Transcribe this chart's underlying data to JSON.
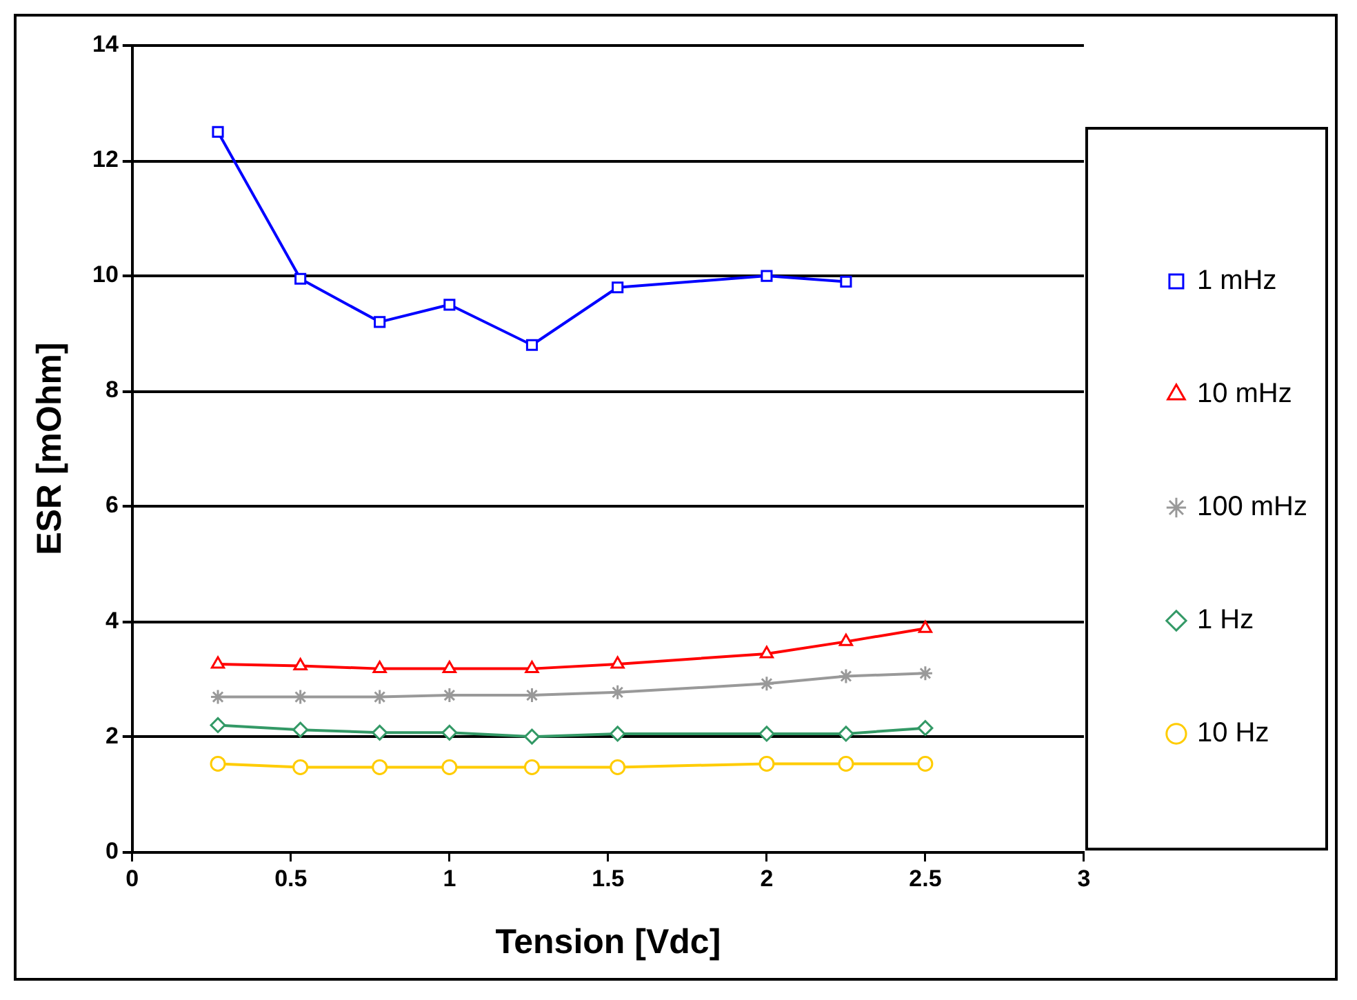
{
  "chart_data": {
    "type": "line",
    "xlabel": "Tension [Vdc]",
    "ylabel": "ESR [mOhm]",
    "xlim": [
      0,
      3
    ],
    "xticks": [
      0,
      0.5,
      1,
      1.5,
      2,
      2.5,
      3
    ],
    "ylim": [
      0,
      14
    ],
    "yticks": [
      0,
      2,
      4,
      6,
      8,
      10,
      12,
      14
    ],
    "grid": "y",
    "legend": "right",
    "series": [
      {
        "name": "1 mHz",
        "color": "#0000ff",
        "marker": "square",
        "x": [
          0.27,
          0.53,
          0.78,
          1.0,
          1.26,
          1.53,
          2.0,
          2.25
        ],
        "values": [
          12.5,
          9.95,
          9.2,
          9.5,
          8.8,
          9.8,
          10.0,
          9.9
        ]
      },
      {
        "name": "10 mHz",
        "color": "#ff0000",
        "marker": "triangle",
        "x": [
          0.27,
          0.53,
          0.78,
          1.0,
          1.26,
          1.53,
          2.0,
          2.25,
          2.5
        ],
        "values": [
          3.26,
          3.23,
          3.18,
          3.18,
          3.18,
          3.26,
          3.44,
          3.65,
          3.88
        ]
      },
      {
        "name": "100 mHz",
        "color": "#999999",
        "marker": "cross",
        "x": [
          0.27,
          0.53,
          0.78,
          1.0,
          1.26,
          1.53,
          2.0,
          2.25,
          2.5
        ],
        "values": [
          2.69,
          2.69,
          2.69,
          2.72,
          2.72,
          2.77,
          2.92,
          3.05,
          3.1
        ]
      },
      {
        "name": "1 Hz",
        "color": "#339966",
        "marker": "diamond",
        "x": [
          0.27,
          0.53,
          0.78,
          1.0,
          1.26,
          1.53,
          2.0,
          2.25,
          2.5
        ],
        "values": [
          2.2,
          2.12,
          2.07,
          2.07,
          2.0,
          2.05,
          2.05,
          2.05,
          2.15
        ]
      },
      {
        "name": "10 Hz",
        "color": "#ffcc00",
        "marker": "circle",
        "x": [
          0.27,
          0.53,
          0.78,
          1.0,
          1.26,
          1.53,
          2.0,
          2.25,
          2.5
        ],
        "values": [
          1.53,
          1.47,
          1.47,
          1.47,
          1.47,
          1.47,
          1.53,
          1.53,
          1.53
        ]
      }
    ]
  }
}
